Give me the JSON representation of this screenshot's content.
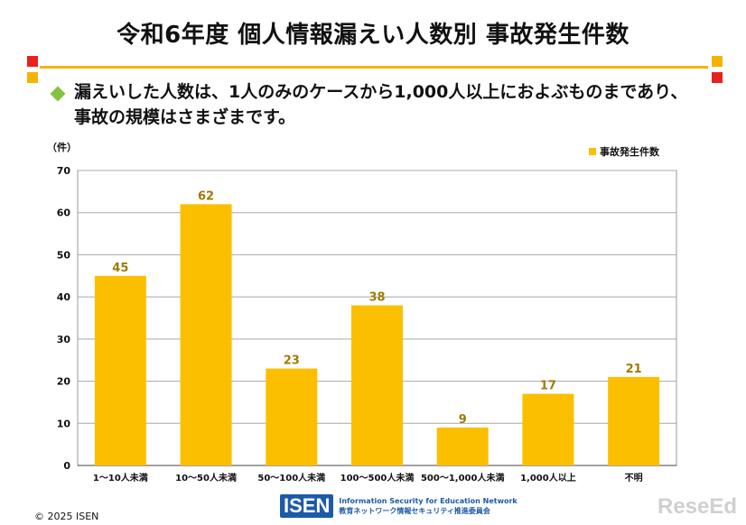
{
  "slide": {
    "title": "令和6年度 個人情報漏えい人数別 事故発生件数",
    "bullet": "漏えいした人数は、1人のみのケースから1,000人以上におよぶものまであり、事故の規模はさまざまです。",
    "unit_label": "（件）",
    "footer": "© 2025 ISEN",
    "logo_mark": "ISEN",
    "logo_line1": "Information Security for Education Network",
    "logo_line2": "教育ネットワーク情報セキュリティ推進委員会",
    "watermark": "ReseEd"
  },
  "colors": {
    "bar": "#fbbf00",
    "label": "#a07a00",
    "accent_red": "#e8211e",
    "accent_yellow": "#f4b400",
    "bullet_green": "#82c341"
  },
  "chart_data": {
    "type": "bar",
    "categories": [
      "1～10人未満",
      "10～50人未満",
      "50～100人未満",
      "100～500人未満",
      "500～1,000人未満",
      "1,000人以上",
      "不明"
    ],
    "series": [
      {
        "name": "事故発生件数",
        "values": [
          45,
          62,
          23,
          38,
          9,
          17,
          21
        ]
      }
    ],
    "ylim": [
      0,
      70
    ],
    "yticks": [
      0,
      10,
      20,
      30,
      40,
      50,
      60,
      70
    ],
    "grid": true,
    "legend": "top-right"
  }
}
